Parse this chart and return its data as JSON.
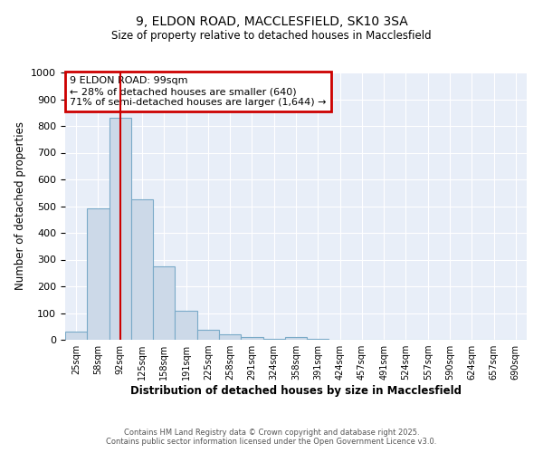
{
  "title_line1": "9, ELDON ROAD, MACCLESFIELD, SK10 3SA",
  "title_line2": "Size of property relative to detached houses in Macclesfield",
  "xlabel": "Distribution of detached houses by size in Macclesfield",
  "ylabel": "Number of detached properties",
  "categories": [
    "25sqm",
    "58sqm",
    "92sqm",
    "125sqm",
    "158sqm",
    "191sqm",
    "225sqm",
    "258sqm",
    "291sqm",
    "324sqm",
    "358sqm",
    "391sqm",
    "424sqm",
    "457sqm",
    "491sqm",
    "524sqm",
    "557sqm",
    "590sqm",
    "624sqm",
    "657sqm",
    "690sqm"
  ],
  "values": [
    30,
    490,
    830,
    525,
    275,
    110,
    38,
    20,
    10,
    5,
    10,
    5,
    0,
    0,
    0,
    0,
    0,
    0,
    0,
    0,
    0
  ],
  "bar_color": "#ccd9e8",
  "bar_edge_color": "#7aaac8",
  "red_line_x": 2.0,
  "annotation_text": "9 ELDON ROAD: 99sqm\n← 28% of detached houses are smaller (640)\n71% of semi-detached houses are larger (1,644) →",
  "annotation_box_color": "#ffffff",
  "annotation_edge_color": "#cc0000",
  "ylim": [
    0,
    1000
  ],
  "yticks": [
    0,
    100,
    200,
    300,
    400,
    500,
    600,
    700,
    800,
    900,
    1000
  ],
  "background_color": "#e8eef8",
  "grid_color": "#ffffff",
  "footer_line1": "Contains HM Land Registry data © Crown copyright and database right 2025.",
  "footer_line2": "Contains public sector information licensed under the Open Government Licence v3.0."
}
